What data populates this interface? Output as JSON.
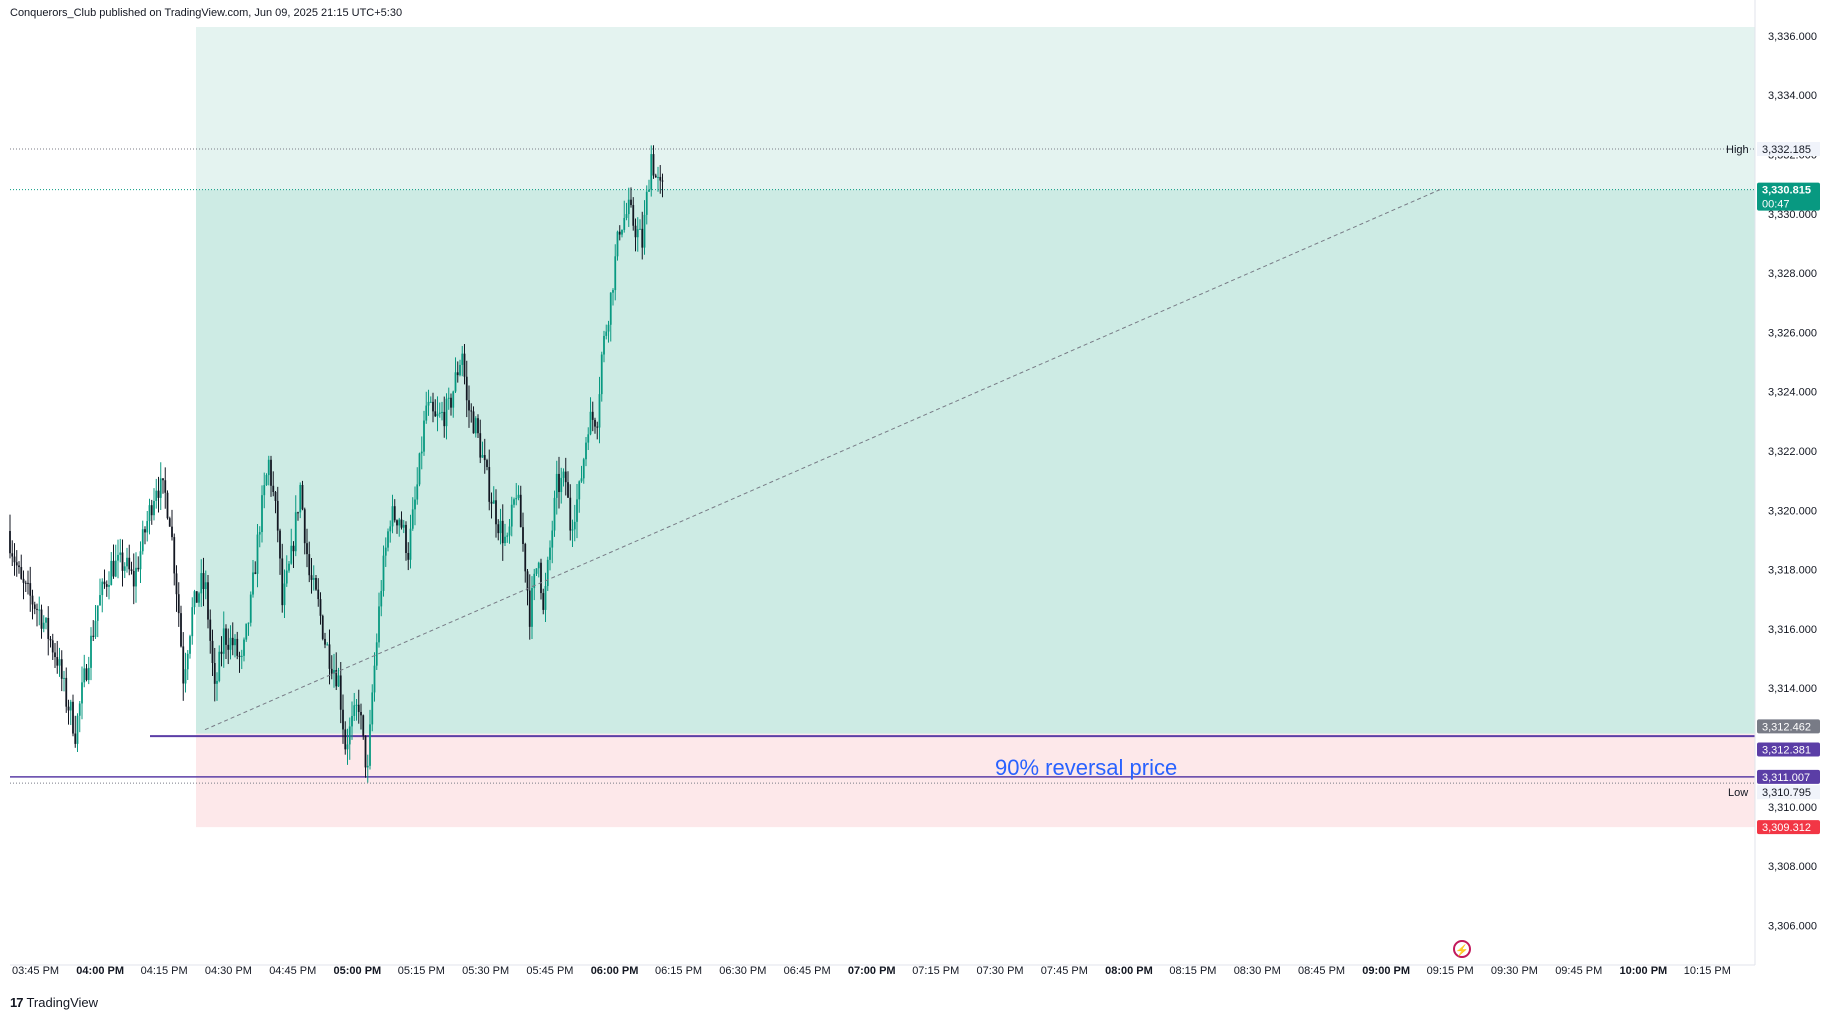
{
  "header": {
    "publisher_line": "Conquerors_Club published on TradingView.com, Jun 09, 2025 21:15 UTC+5:30"
  },
  "footer": {
    "brand": "TradingView",
    "logo_glyph": "17"
  },
  "colors": {
    "bull": "#089981",
    "bear": "#131722",
    "profit_zone": "#cdebe4",
    "profit_zone_upper": "#e4f3f0",
    "loss_zone": "#fde8ea",
    "purple": "#5b3ea6",
    "last_price": "#089981",
    "stop_red": "#f23645",
    "annotation": "#2962ff",
    "gray_tag": "#787b86"
  },
  "annotation": {
    "text": "90% reversal price"
  },
  "chart_data": {
    "type": "candlestick",
    "symbol_note": "XAUUSD 1-min style candles",
    "ylim": [
      3305.0,
      3336.3
    ],
    "y_ticks": [
      "3,306.000",
      "3,308.000",
      "3,310.000",
      "3,312.000",
      "3,314.000",
      "3,316.000",
      "3,318.000",
      "3,320.000",
      "3,322.000",
      "3,324.000",
      "3,326.000",
      "3,328.000",
      "3,330.000",
      "3,332.000",
      "3,334.000",
      "3,336.000"
    ],
    "y_tick_values": [
      3306,
      3308,
      3310,
      3312,
      3314,
      3316,
      3318,
      3320,
      3322,
      3324,
      3326,
      3328,
      3330,
      3332,
      3334,
      3336
    ],
    "x_ticks": [
      {
        "label": "03:45 PM",
        "bold": false
      },
      {
        "label": "04:00 PM",
        "bold": true
      },
      {
        "label": "04:15 PM",
        "bold": false
      },
      {
        "label": "04:30 PM",
        "bold": false
      },
      {
        "label": "04:45 PM",
        "bold": false
      },
      {
        "label": "05:00 PM",
        "bold": true
      },
      {
        "label": "05:15 PM",
        "bold": false
      },
      {
        "label": "05:30 PM",
        "bold": false
      },
      {
        "label": "05:45 PM",
        "bold": false
      },
      {
        "label": "06:00 PM",
        "bold": true
      },
      {
        "label": "06:15 PM",
        "bold": false
      },
      {
        "label": "06:30 PM",
        "bold": false
      },
      {
        "label": "06:45 PM",
        "bold": false
      },
      {
        "label": "07:00 PM",
        "bold": true
      },
      {
        "label": "07:15 PM",
        "bold": false
      },
      {
        "label": "07:30 PM",
        "bold": false
      },
      {
        "label": "07:45 PM",
        "bold": false
      },
      {
        "label": "08:00 PM",
        "bold": true
      },
      {
        "label": "08:15 PM",
        "bold": false
      },
      {
        "label": "08:30 PM",
        "bold": false
      },
      {
        "label": "08:45 PM",
        "bold": false
      },
      {
        "label": "09:00 PM",
        "bold": true
      },
      {
        "label": "09:15 PM",
        "bold": false
      },
      {
        "label": "09:30 PM",
        "bold": false
      },
      {
        "label": "09:45 PM",
        "bold": false
      },
      {
        "label": "10:00 PM",
        "bold": true
      },
      {
        "label": "10:15 PM",
        "bold": false
      }
    ],
    "levels": {
      "high": {
        "label": "High",
        "value": "3,332.185",
        "price": 3332.185
      },
      "last": {
        "value": "3,330.815",
        "countdown": "00:47",
        "price": 3330.815
      },
      "entry": {
        "value": "3,312.462",
        "price": 3312.462
      },
      "purple_upper": {
        "value": "3,312.381",
        "price": 3312.381
      },
      "purple_lower": {
        "value": "3,311.007",
        "price": 3311.007
      },
      "low": {
        "label": "Low",
        "value": "3,310.795",
        "price": 3310.795
      },
      "stop": {
        "value": "3,309.312",
        "price": 3309.312
      },
      "target_price": 3336.3
    },
    "path": [
      [
        0,
        3319.3
      ],
      [
        6,
        3317.5
      ],
      [
        14,
        3316.6
      ],
      [
        22,
        3315.0
      ],
      [
        26,
        3313.6
      ],
      [
        28,
        3313.2
      ],
      [
        30,
        3312.5
      ],
      [
        34,
        3314.3
      ],
      [
        40,
        3316.8
      ],
      [
        46,
        3318.1
      ],
      [
        52,
        3318.2
      ],
      [
        56,
        3317.6
      ],
      [
        61,
        3319.3
      ],
      [
        66,
        3320.9
      ],
      [
        70,
        3320.5
      ],
      [
        72,
        3319.8
      ],
      [
        76,
        3316.6
      ],
      [
        78,
        3314.4
      ],
      [
        82,
        3316.6
      ],
      [
        86,
        3317.5
      ],
      [
        88,
        3317.3
      ],
      [
        90,
        3315.6
      ],
      [
        92,
        3313.8
      ],
      [
        96,
        3315.8
      ],
      [
        100,
        3315.5
      ],
      [
        104,
        3314.8
      ],
      [
        108,
        3316.8
      ],
      [
        112,
        3319.6
      ],
      [
        116,
        3321.6
      ],
      [
        120,
        3319.4
      ],
      [
        122,
        3316.8
      ],
      [
        126,
        3318.4
      ],
      [
        130,
        3320.8
      ],
      [
        134,
        3317.8
      ],
      [
        138,
        3316.8
      ],
      [
        141,
        3315.6
      ],
      [
        143,
        3315.1
      ],
      [
        147,
        3314.3
      ],
      [
        150,
        3312.1
      ],
      [
        154,
        3313.0
      ],
      [
        156,
        3313.5
      ],
      [
        158,
        3312.1
      ],
      [
        160,
        3311.1
      ],
      [
        162,
        3313.8
      ],
      [
        166,
        3317.5
      ],
      [
        170,
        3319.8
      ],
      [
        174,
        3319.8
      ],
      [
        178,
        3318.6
      ],
      [
        182,
        3320.8
      ],
      [
        186,
        3323.5
      ],
      [
        190,
        3323.0
      ],
      [
        196,
        3323.4
      ],
      [
        202,
        3325.4
      ],
      [
        204,
        3323.6
      ],
      [
        208,
        3322.8
      ],
      [
        214,
        3320.7
      ],
      [
        218,
        3319.6
      ],
      [
        222,
        3318.8
      ],
      [
        226,
        3320.7
      ],
      [
        230,
        3318.2
      ],
      [
        232,
        3316.5
      ],
      [
        236,
        3318.6
      ],
      [
        238,
        3316.5
      ],
      [
        240,
        3318.0
      ],
      [
        244,
        3320.8
      ],
      [
        248,
        3321.0
      ],
      [
        250,
        3319.5
      ],
      [
        254,
        3320.6
      ],
      [
        258,
        3323.0
      ],
      [
        262,
        3323.2
      ],
      [
        264,
        3325.2
      ],
      [
        268,
        3327.2
      ],
      [
        272,
        3329.6
      ],
      [
        276,
        3330.1
      ],
      [
        278,
        3329.7
      ],
      [
        282,
        3329.0
      ],
      [
        284,
        3330.5
      ],
      [
        286,
        3332.0
      ],
      [
        288,
        3331.2
      ],
      [
        290,
        3330.8
      ]
    ]
  }
}
